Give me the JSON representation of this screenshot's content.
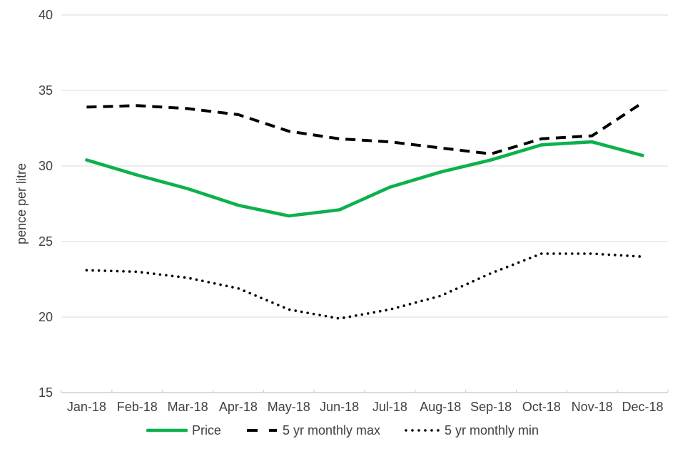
{
  "chart_data": {
    "type": "line",
    "title": "",
    "xlabel": "",
    "ylabel": "pence per litre",
    "ylim": [
      15,
      40
    ],
    "yticks": [
      15,
      20,
      25,
      30,
      35,
      40
    ],
    "grid": true,
    "legend_position": "bottom",
    "categories": [
      "Jan-18",
      "Feb-18",
      "Mar-18",
      "Apr-18",
      "May-18",
      "Jun-18",
      "Jul-18",
      "Aug-18",
      "Sep-18",
      "Oct-18",
      "Nov-18",
      "Dec-18"
    ],
    "series": [
      {
        "name": "Price",
        "style": "solid",
        "color": "#0db14c",
        "values": [
          30.4,
          29.4,
          28.5,
          27.4,
          26.7,
          27.1,
          28.6,
          29.6,
          30.4,
          31.4,
          31.6,
          30.7
        ]
      },
      {
        "name": "5 yr monthly max",
        "style": "dashed",
        "color": "#000000",
        "values": [
          33.9,
          34.0,
          33.8,
          33.4,
          32.3,
          31.8,
          31.6,
          31.2,
          30.8,
          31.8,
          32.0,
          34.2
        ]
      },
      {
        "name": "5 yr monthly min",
        "style": "dotted",
        "color": "#000000",
        "values": [
          23.1,
          23.0,
          22.6,
          21.9,
          20.5,
          19.9,
          20.5,
          21.4,
          22.9,
          24.2,
          24.2,
          24.0
        ]
      }
    ]
  },
  "colors": {
    "accent_green": "#0db14c",
    "gridline": "#d9d9d9",
    "axis_line": "#c6c6c6",
    "text": "#404040",
    "background": "#ffffff"
  }
}
